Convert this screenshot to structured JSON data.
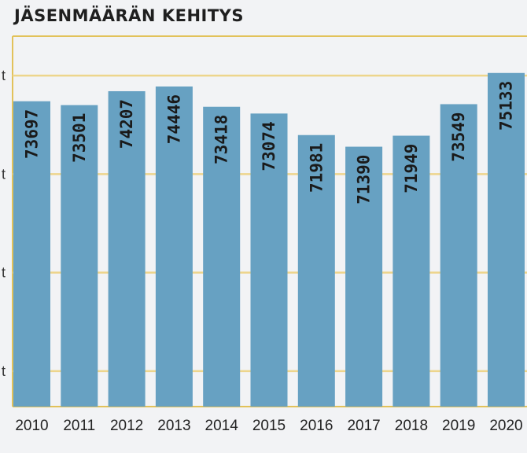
{
  "chart_data": {
    "type": "bar",
    "title": "JÄSENMÄÄRÄN KEHITYS",
    "categories": [
      "2010",
      "2011",
      "2012",
      "2013",
      "2014",
      "2015",
      "2016",
      "2017",
      "2018",
      "2019",
      "2020"
    ],
    "values": [
      73697,
      73501,
      74207,
      74446,
      73418,
      73074,
      71981,
      71390,
      71949,
      73549,
      75133
    ],
    "data_labels": [
      "73697",
      "73501",
      "74207",
      "74446",
      "73418",
      "73074",
      "71981",
      "71390",
      "71949",
      "73549",
      "75133"
    ],
    "ytick_labels": [
      "t",
      "t",
      "t",
      "t"
    ],
    "ytick_values": [
      60000,
      65000,
      70000,
      75000
    ],
    "ylim": [
      58200,
      77000
    ],
    "xlabel": "",
    "ylabel": "",
    "grid": true,
    "colors": {
      "bar": "#67a1c2",
      "grid": "#edd58c",
      "frame": "#e2c25a",
      "label": "#1a1a1a",
      "background": "#f2f3f5"
    }
  }
}
